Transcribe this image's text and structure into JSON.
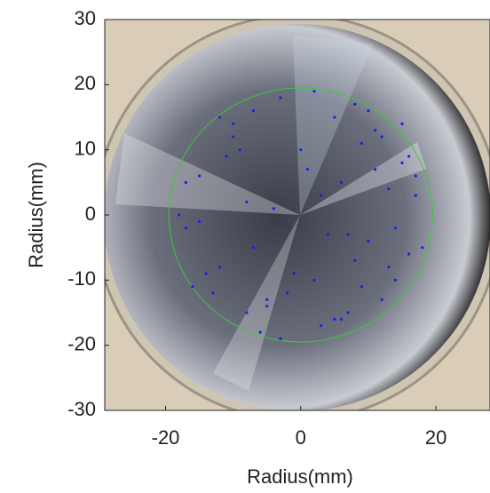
{
  "chart_data": {
    "type": "scatter",
    "xlabel": "Radius(mm)",
    "ylabel": "Radius(mm)",
    "xlim": [
      -29,
      28
    ],
    "ylim": [
      -30,
      30
    ],
    "xticks": [
      -20,
      0,
      20
    ],
    "yticks": [
      -30,
      -20,
      -10,
      0,
      10,
      20,
      30
    ],
    "color": "#1c1cf0",
    "circle": {
      "radius": 19.5,
      "color": "#3cc83c"
    },
    "x": [
      5,
      8,
      -3,
      12,
      -10,
      15,
      -15,
      2,
      -7,
      10,
      17,
      -17,
      0,
      6,
      -12,
      14,
      -5,
      9,
      3,
      -18,
      11,
      -8,
      16,
      -2,
      7,
      -14,
      13,
      -11,
      4,
      18,
      -16,
      1,
      -6,
      12,
      -9,
      15,
      -4,
      8,
      -13,
      5,
      10,
      -1,
      14,
      -17,
      3,
      -7,
      16,
      -10,
      6,
      11,
      -3,
      9,
      -15,
      2,
      13,
      -12,
      7,
      -8,
      17,
      -5
    ],
    "y": [
      15,
      17,
      18,
      12,
      14,
      8,
      6,
      19,
      16,
      -4,
      3,
      -2,
      10,
      5,
      -8,
      -10,
      -14,
      11,
      -17,
      0,
      13,
      2,
      -6,
      -12,
      -15,
      -9,
      4,
      9,
      -3,
      -5,
      -11,
      7,
      -18,
      -13,
      10,
      14,
      1,
      -7,
      -12,
      -16,
      16,
      -9,
      -2,
      5,
      3,
      -5,
      9,
      12,
      -16,
      7,
      -19,
      -11,
      -1,
      -10,
      -8,
      15,
      -3,
      -15,
      6,
      -13
    ]
  }
}
